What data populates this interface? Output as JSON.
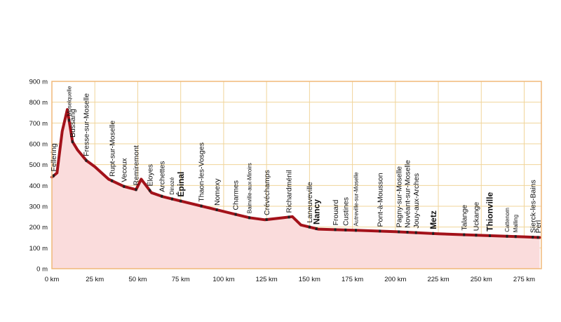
{
  "chart_data": {
    "type": "area",
    "title": "",
    "xlabel": "",
    "ylabel": "",
    "xlim": [
      0,
      285
    ],
    "ylim": [
      0,
      900
    ],
    "grid": true,
    "legend": "none",
    "colors": {
      "line": "#a3121a",
      "fill": "#fadcdc",
      "grid": "#f0d49a",
      "frame": "#f0b878",
      "marker": "#222222"
    },
    "y_ticks": [
      {
        "value": 0,
        "label": "0 m"
      },
      {
        "value": 100,
        "label": "100 m"
      },
      {
        "value": 200,
        "label": "200 m"
      },
      {
        "value": 300,
        "label": "300 m"
      },
      {
        "value": 400,
        "label": "400 m"
      },
      {
        "value": 500,
        "label": "500 m"
      },
      {
        "value": 600,
        "label": "600 m"
      },
      {
        "value": 700,
        "label": "700 m"
      },
      {
        "value": 800,
        "label": "800 m"
      },
      {
        "value": 900,
        "label": "900 m"
      }
    ],
    "x_ticks": [
      {
        "value": 0,
        "label": "0 km"
      },
      {
        "value": 25,
        "label": "25 km"
      },
      {
        "value": 50,
        "label": "50 km"
      },
      {
        "value": 75,
        "label": "75 km"
      },
      {
        "value": 100,
        "label": "100 km"
      },
      {
        "value": 125,
        "label": "125 km"
      },
      {
        "value": 150,
        "label": "150 km"
      },
      {
        "value": 175,
        "label": "175 km"
      },
      {
        "value": 200,
        "label": "200 km"
      },
      {
        "value": 225,
        "label": "225 km"
      },
      {
        "value": 250,
        "label": "250 km"
      },
      {
        "value": 275,
        "label": "275 km"
      }
    ],
    "profile": [
      [
        0,
        440
      ],
      [
        3,
        460
      ],
      [
        6,
        660
      ],
      [
        9,
        765
      ],
      [
        12,
        610
      ],
      [
        15,
        570
      ],
      [
        20,
        520
      ],
      [
        25,
        490
      ],
      [
        33,
        430
      ],
      [
        42,
        395
      ],
      [
        49,
        380
      ],
      [
        52,
        430
      ],
      [
        58,
        365
      ],
      [
        65,
        345
      ],
      [
        75,
        325
      ],
      [
        85,
        305
      ],
      [
        95,
        285
      ],
      [
        105,
        265
      ],
      [
        115,
        245
      ],
      [
        124,
        235
      ],
      [
        135,
        245
      ],
      [
        140,
        250
      ],
      [
        145,
        210
      ],
      [
        155,
        190
      ],
      [
        175,
        185
      ],
      [
        200,
        178
      ],
      [
        225,
        168
      ],
      [
        250,
        160
      ],
      [
        275,
        153
      ],
      [
        284,
        150
      ]
    ],
    "towns": [
      {
        "name": "Fellering",
        "km": 1,
        "bold": false,
        "small": false
      },
      {
        "name": "Moselquelle",
        "km": 10,
        "bold": false,
        "small": true
      },
      {
        "name": "Bussang",
        "km": 12,
        "bold": false,
        "small": false
      },
      {
        "name": "Fresse-sur-Moselle",
        "km": 20,
        "bold": false,
        "small": false
      },
      {
        "name": "Rupt-sur-Moselle",
        "km": 35,
        "bold": false,
        "small": false
      },
      {
        "name": "Vecoux",
        "km": 42,
        "bold": false,
        "small": false
      },
      {
        "name": "Remiremont",
        "km": 49,
        "bold": false,
        "small": false
      },
      {
        "name": "Éloyes",
        "km": 57,
        "bold": false,
        "small": false
      },
      {
        "name": "Archettes",
        "km": 64,
        "bold": false,
        "small": false
      },
      {
        "name": "Dinozé",
        "km": 70,
        "bold": false,
        "small": true
      },
      {
        "name": "Épinal",
        "km": 75,
        "bold": true,
        "small": false
      },
      {
        "name": "Thaon-les-Vosges",
        "km": 87,
        "bold": false,
        "small": false
      },
      {
        "name": "Nomexy",
        "km": 96,
        "bold": false,
        "small": false
      },
      {
        "name": "Charmes",
        "km": 107,
        "bold": false,
        "small": false
      },
      {
        "name": "Bainville-aux-Miroirs",
        "km": 115,
        "bold": false,
        "small": true
      },
      {
        "name": "Crévéchamps",
        "km": 125,
        "bold": false,
        "small": false
      },
      {
        "name": "Richardménil",
        "km": 138,
        "bold": false,
        "small": false
      },
      {
        "name": "Laneuveville",
        "km": 150,
        "bold": false,
        "small": false
      },
      {
        "name": "Nancy",
        "km": 154,
        "bold": true,
        "small": false
      },
      {
        "name": "Frouard",
        "km": 165,
        "bold": false,
        "small": false
      },
      {
        "name": "Custines",
        "km": 171,
        "bold": false,
        "small": false
      },
      {
        "name": "Autreville-sur-Moselle",
        "km": 177,
        "bold": false,
        "small": true
      },
      {
        "name": "Pont-à-Mousson",
        "km": 191,
        "bold": false,
        "small": false
      },
      {
        "name": "Pagny-sur-Moselle",
        "km": 202,
        "bold": false,
        "small": false
      },
      {
        "name": "Novéant-sur-Moselle",
        "km": 207,
        "bold": false,
        "small": false
      },
      {
        "name": "Jouy-aux-Arches",
        "km": 212,
        "bold": false,
        "small": false
      },
      {
        "name": "Metz",
        "km": 222,
        "bold": true,
        "small": false
      },
      {
        "name": "Talange",
        "km": 240,
        "bold": false,
        "small": false
      },
      {
        "name": "Uckange",
        "km": 247,
        "bold": false,
        "small": false
      },
      {
        "name": "Thionville",
        "km": 255,
        "bold": true,
        "small": false
      },
      {
        "name": "Cattenom",
        "km": 265,
        "bold": false,
        "small": true
      },
      {
        "name": "Malling",
        "km": 270,
        "bold": false,
        "small": true
      },
      {
        "name": "Sierck-les-Bains",
        "km": 280,
        "bold": false,
        "small": false
      },
      {
        "name": "Perl",
        "km": 283,
        "bold": false,
        "small": false
      }
    ]
  }
}
